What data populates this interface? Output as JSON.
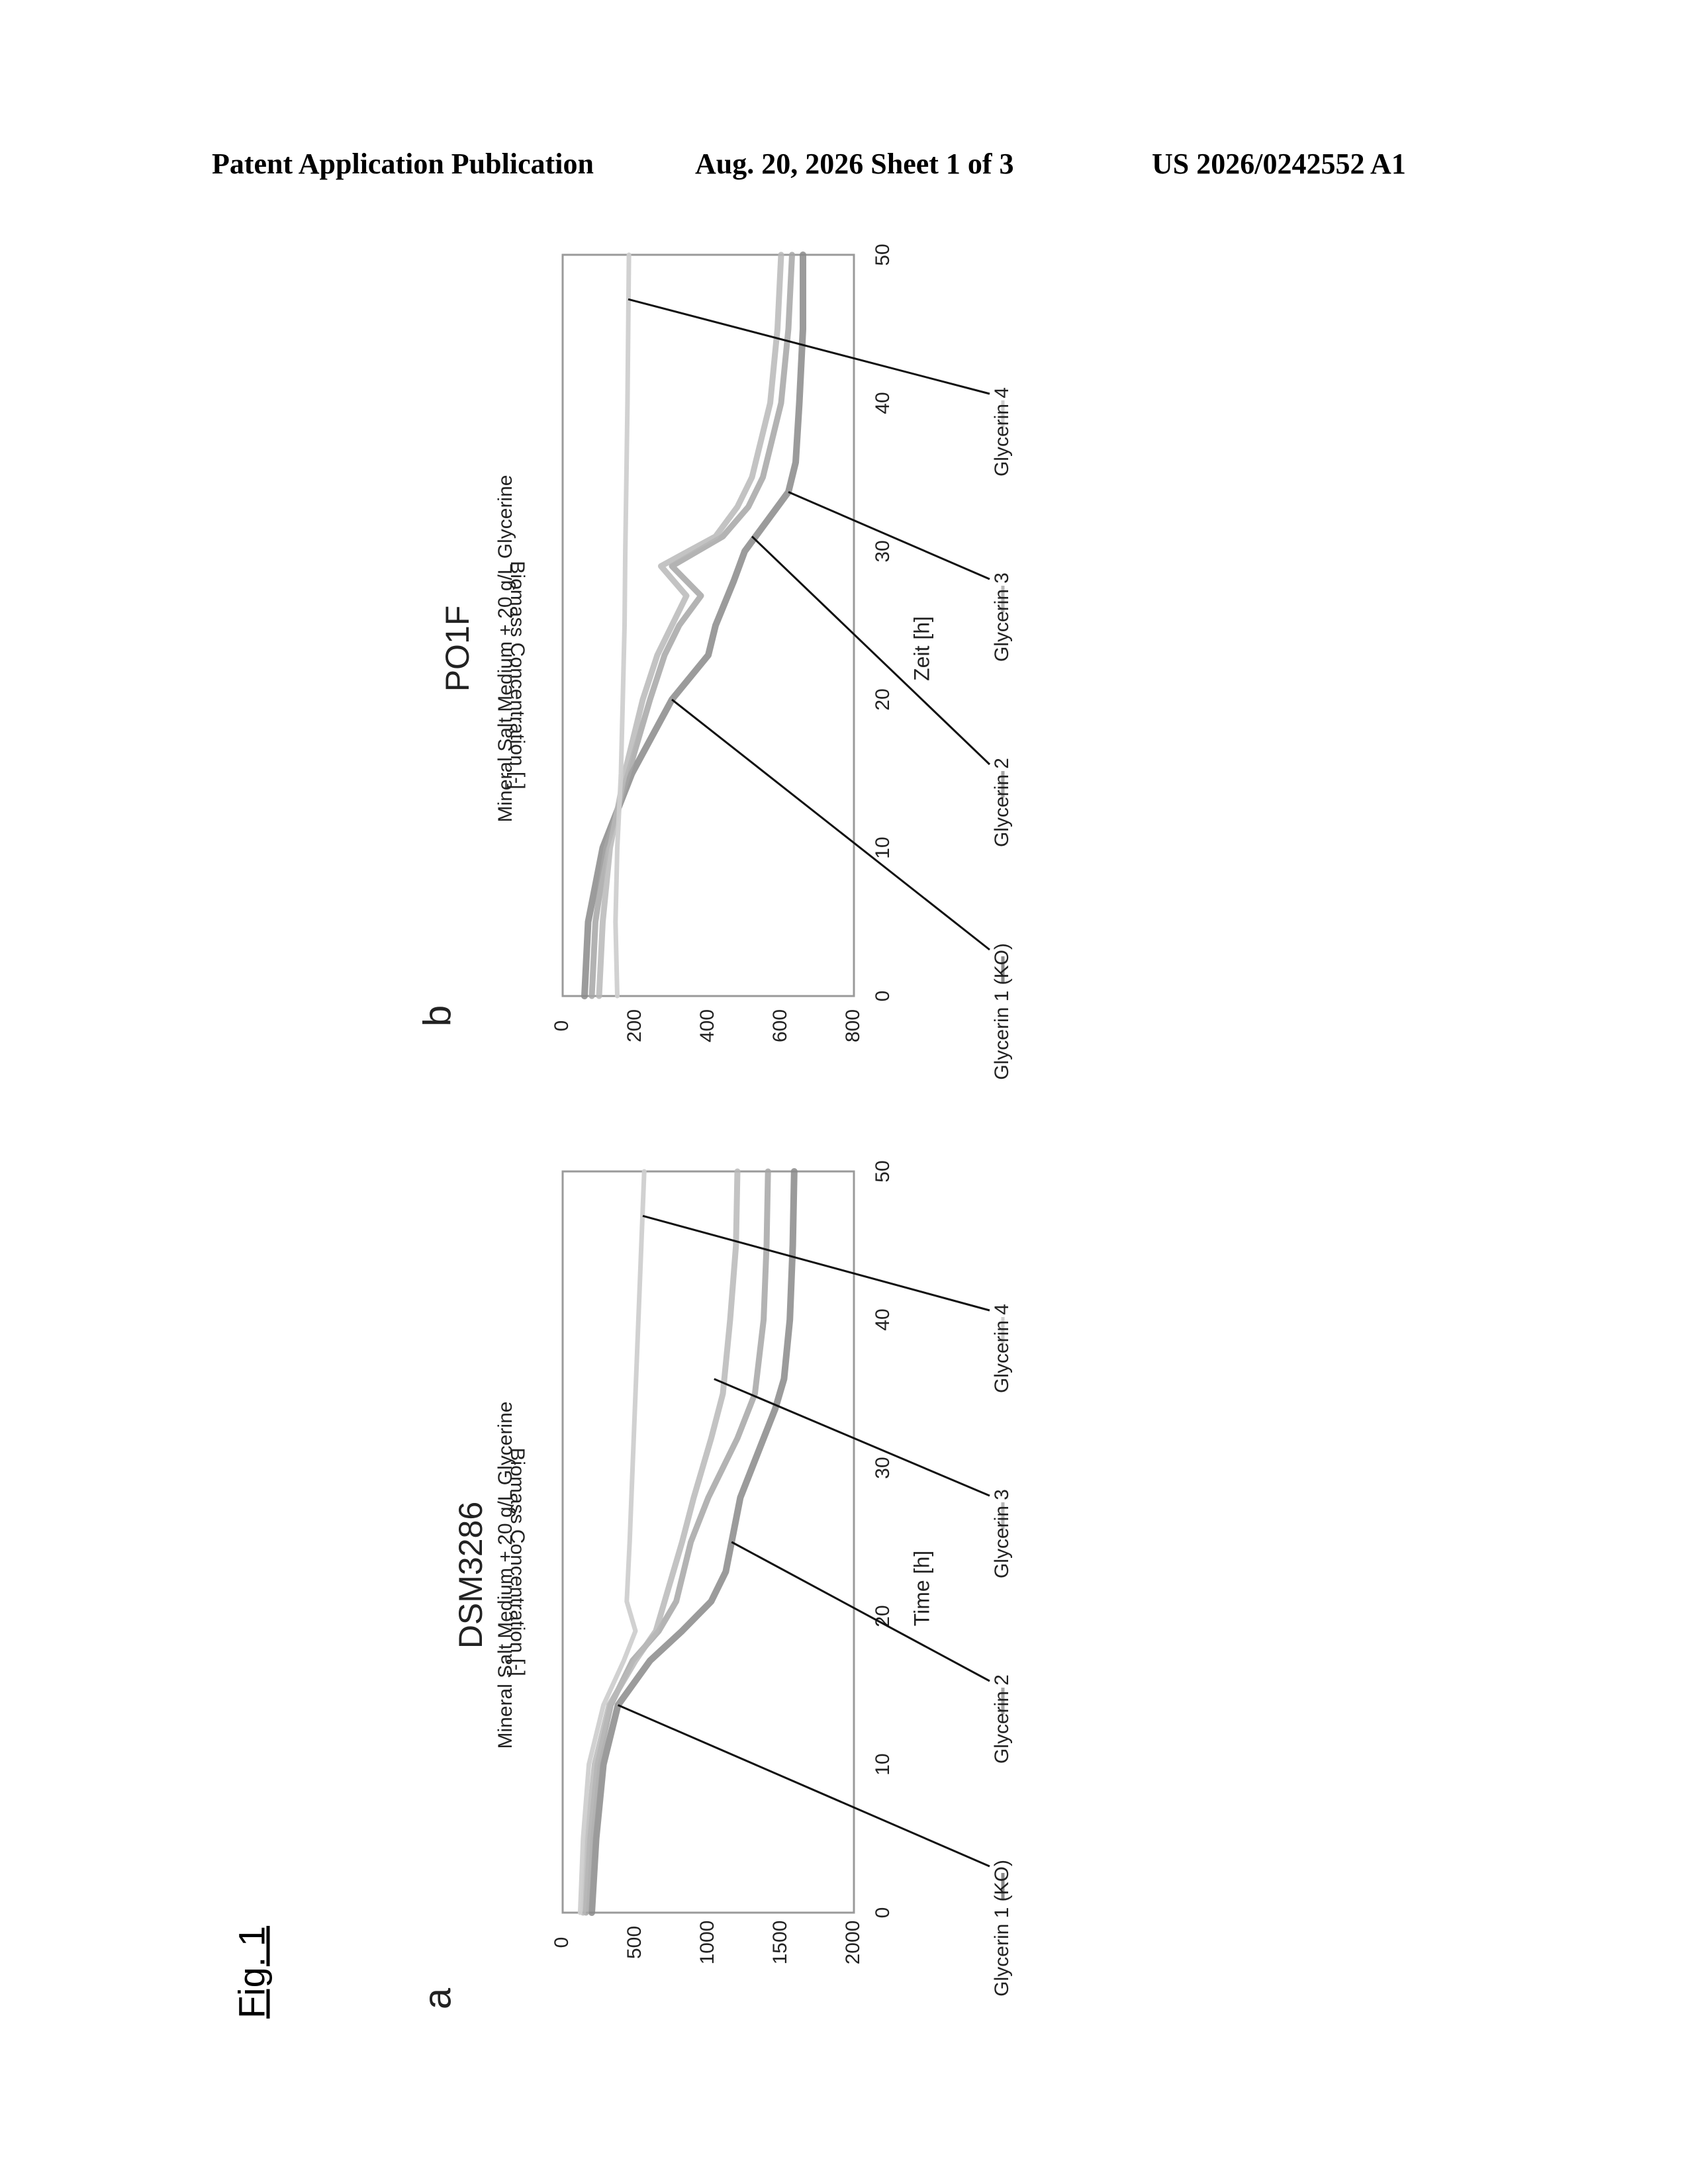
{
  "header": {
    "left": "Patent Application Publication",
    "center": "Aug. 20, 2026  Sheet 1 of 3",
    "right": "US 2026/0242552 A1"
  },
  "figure_label": "Fig. 1",
  "chart_data": [
    {
      "panel_label": "a",
      "type": "line",
      "title": "DSM3286",
      "subtitle": "Mineral Salt Medium  + 20 g/L Glycerine",
      "xlabel": "Time   [h]",
      "ylabel": "Biomass Concentration   [-]",
      "xlim": [
        0,
        50
      ],
      "ylim": [
        0,
        2000
      ],
      "xticks": [
        "0",
        "10",
        "20",
        "30",
        "40",
        "50"
      ],
      "yticks": [
        "0",
        "500",
        "1000",
        "1500",
        "2000"
      ],
      "legend": [
        "Glycerin 1 (KO)",
        "Glycerin 2",
        "Glycerin 3",
        "Glycerin 4"
      ],
      "legend_position": "bottom",
      "grid": false,
      "series": [
        {
          "name": "Glycerin 1 (KO)",
          "x": [
            0,
            5,
            10,
            14,
            17,
            19,
            21,
            23,
            25,
            28,
            30,
            32,
            34,
            36,
            40,
            45,
            50
          ],
          "y": [
            200,
            230,
            280,
            380,
            600,
            820,
            1020,
            1120,
            1160,
            1220,
            1300,
            1380,
            1460,
            1520,
            1560,
            1580,
            1590
          ]
        },
        {
          "name": "Glycerin 2",
          "x": [
            0,
            5,
            10,
            14,
            17,
            19,
            21,
            23,
            25,
            28,
            30,
            32,
            35,
            40,
            45,
            50
          ],
          "y": [
            160,
            190,
            240,
            330,
            480,
            660,
            780,
            830,
            880,
            1000,
            1100,
            1200,
            1320,
            1380,
            1400,
            1410
          ]
        },
        {
          "name": "Glycerin 3",
          "x": [
            0,
            5,
            10,
            14,
            17,
            19,
            21,
            23,
            25,
            28,
            30,
            32,
            35,
            40,
            45,
            50
          ],
          "y": [
            140,
            170,
            220,
            320,
            500,
            640,
            700,
            760,
            820,
            900,
            960,
            1020,
            1100,
            1150,
            1190,
            1200
          ]
        },
        {
          "name": "Glycerin 4",
          "x": [
            0,
            5,
            10,
            14,
            17,
            19,
            21,
            25,
            30,
            35,
            40,
            45,
            50
          ],
          "y": [
            120,
            140,
            180,
            280,
            420,
            500,
            440,
            460,
            480,
            500,
            520,
            540,
            560
          ]
        }
      ],
      "annotation_leaders": [
        {
          "label": "Glycerin 1 (KO)",
          "x": 14,
          "y": 380
        },
        {
          "label": "Glycerin 2",
          "x": 25,
          "y": 1160
        },
        {
          "label": "Glycerin 3",
          "x": 36,
          "y": 1040
        },
        {
          "label": "Glycerin 4",
          "x": 47,
          "y": 550
        }
      ]
    },
    {
      "panel_label": "b",
      "type": "line",
      "title": "PO1F",
      "subtitle": "Mineral Salt Medium  + 20 g/L Glycerine",
      "xlabel": "Zeit [h]",
      "ylabel": "Biomass Concentration   [-]",
      "xlim": [
        0,
        50
      ],
      "ylim": [
        0,
        800
      ],
      "xticks": [
        "0",
        "10",
        "20",
        "30",
        "40",
        "50"
      ],
      "yticks": [
        "0",
        "200",
        "400",
        "600",
        "800"
      ],
      "legend": [
        "Glycerin 1 (KO)",
        "Glycerin 2",
        "Glycerin 3",
        "Glycerin 4"
      ],
      "legend_position": "bottom",
      "grid": false,
      "series": [
        {
          "name": "Glycerin 1 (KO)",
          "x": [
            0,
            5,
            10,
            15,
            20,
            23,
            25,
            28,
            30,
            32,
            34,
            36,
            40,
            45,
            50
          ],
          "y": [
            60,
            70,
            110,
            190,
            300,
            400,
            420,
            470,
            500,
            560,
            620,
            640,
            650,
            660,
            660
          ]
        },
        {
          "name": "Glycerin 2",
          "x": [
            0,
            5,
            10,
            15,
            20,
            23,
            25,
            27,
            29,
            31,
            33,
            35,
            40,
            45,
            50
          ],
          "y": [
            80,
            90,
            120,
            180,
            240,
            280,
            320,
            380,
            300,
            440,
            510,
            550,
            600,
            620,
            630
          ]
        },
        {
          "name": "Glycerin 3",
          "x": [
            0,
            5,
            10,
            15,
            20,
            23,
            25,
            27,
            29,
            31,
            33,
            35,
            40,
            45,
            50
          ],
          "y": [
            100,
            110,
            130,
            170,
            220,
            260,
            300,
            340,
            270,
            420,
            480,
            520,
            570,
            590,
            600
          ]
        },
        {
          "name": "Glycerin 4",
          "x": [
            0,
            5,
            10,
            15,
            20,
            25,
            30,
            35,
            40,
            45,
            50
          ],
          "y": [
            150,
            145,
            150,
            160,
            165,
            170,
            172,
            175,
            178,
            180,
            182
          ]
        }
      ],
      "annotation_leaders": [
        {
          "label": "Glycerin 1 (KO)",
          "x": 20,
          "y": 300
        },
        {
          "label": "Glycerin 2",
          "x": 31,
          "y": 520
        },
        {
          "label": "Glycerin 3",
          "x": 34,
          "y": 620
        },
        {
          "label": "Glycerin 4",
          "x": 47,
          "y": 180
        }
      ]
    }
  ]
}
